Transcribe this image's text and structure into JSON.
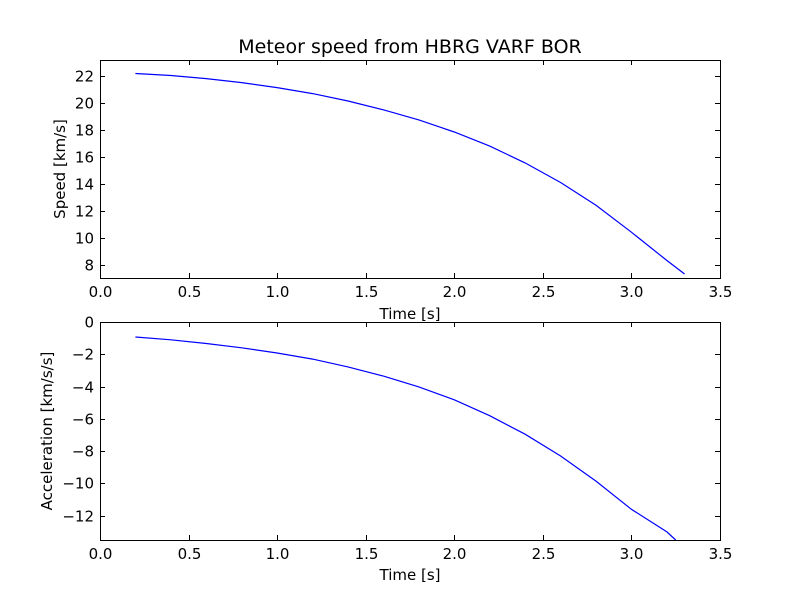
{
  "chart_data": [
    {
      "type": "line",
      "title": "Meteor speed from  HBRG VARF BOR",
      "xlabel": "Time [s]",
      "ylabel": "Speed [km/s]",
      "xlim": [
        0.0,
        3.5
      ],
      "ylim": [
        7.0,
        23.2
      ],
      "xticks": [
        "0.0",
        "0.5",
        "1.0",
        "1.5",
        "2.0",
        "2.5",
        "3.0",
        "3.5"
      ],
      "yticks": [
        "8",
        "10",
        "12",
        "14",
        "16",
        "18",
        "20",
        "22"
      ],
      "grid": false,
      "line_color": "#0000ff",
      "series": [
        {
          "x": [
            0.2,
            0.4,
            0.6,
            0.8,
            1.0,
            1.2,
            1.4,
            1.6,
            1.8,
            2.0,
            2.2,
            2.4,
            2.6,
            2.8,
            3.0,
            3.2,
            3.3
          ],
          "y": [
            22.2,
            22.05,
            21.82,
            21.52,
            21.15,
            20.7,
            20.15,
            19.5,
            18.75,
            17.85,
            16.8,
            15.55,
            14.1,
            12.4,
            10.4,
            8.3,
            7.3
          ]
        }
      ]
    },
    {
      "type": "line",
      "title": "",
      "xlabel": "Time [s]",
      "ylabel": "Acceleration [km/s/s]",
      "xlim": [
        0.0,
        3.5
      ],
      "ylim": [
        -13.5,
        0.0
      ],
      "xticks": [
        "0.0",
        "0.5",
        "1.0",
        "1.5",
        "2.0",
        "2.5",
        "3.0",
        "3.5"
      ],
      "yticks": [
        "0",
        "−2",
        "−4",
        "−6",
        "−8",
        "−10",
        "−12"
      ],
      "grid": false,
      "line_color": "#0000ff",
      "series": [
        {
          "x": [
            0.2,
            0.4,
            0.6,
            0.8,
            1.0,
            1.2,
            1.4,
            1.6,
            1.8,
            2.0,
            2.2,
            2.4,
            2.6,
            2.8,
            3.0,
            3.2,
            3.25
          ],
          "y": [
            -0.93,
            -1.1,
            -1.33,
            -1.6,
            -1.92,
            -2.3,
            -2.78,
            -3.35,
            -4.02,
            -4.82,
            -5.8,
            -6.95,
            -8.3,
            -9.85,
            -11.6,
            -13.0,
            -13.5
          ]
        }
      ]
    }
  ]
}
